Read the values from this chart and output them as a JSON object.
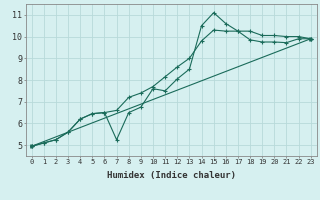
{
  "title": "",
  "xlabel": "Humidex (Indice chaleur)",
  "bg_color": "#d6f0f0",
  "grid_color": "#b8dada",
  "line_color": "#1a6b5a",
  "xlim": [
    -0.5,
    23.5
  ],
  "ylim": [
    4.5,
    11.5
  ],
  "xticks": [
    0,
    1,
    2,
    3,
    4,
    5,
    6,
    7,
    8,
    9,
    10,
    11,
    12,
    13,
    14,
    15,
    16,
    17,
    18,
    19,
    20,
    21,
    22,
    23
  ],
  "yticks": [
    5,
    6,
    7,
    8,
    9,
    10,
    11
  ],
  "line1_x": [
    0,
    1,
    2,
    3,
    4,
    5,
    6,
    7,
    8,
    9,
    10,
    11,
    12,
    13,
    14,
    15,
    16,
    17,
    18,
    19,
    20,
    21,
    22,
    23
  ],
  "line1_y": [
    4.95,
    5.1,
    5.25,
    5.6,
    6.2,
    6.45,
    6.5,
    5.25,
    6.5,
    6.75,
    7.6,
    7.5,
    8.05,
    8.5,
    10.5,
    11.1,
    10.6,
    10.25,
    10.25,
    10.05,
    10.05,
    10.0,
    10.0,
    9.9
  ],
  "line2_x": [
    0,
    1,
    2,
    3,
    4,
    5,
    6,
    7,
    8,
    9,
    10,
    11,
    12,
    13,
    14,
    15,
    16,
    17,
    18,
    19,
    20,
    21,
    22,
    23
  ],
  "line2_y": [
    4.95,
    5.1,
    5.25,
    5.6,
    6.2,
    6.45,
    6.5,
    6.6,
    7.2,
    7.4,
    7.7,
    8.15,
    8.6,
    9.0,
    9.8,
    10.3,
    10.25,
    10.25,
    9.85,
    9.75,
    9.75,
    9.72,
    9.9,
    9.9
  ],
  "line3_x": [
    0,
    23
  ],
  "line3_y": [
    4.95,
    9.9
  ],
  "tick_fontsize": 5.0,
  "xlabel_fontsize": 6.5
}
